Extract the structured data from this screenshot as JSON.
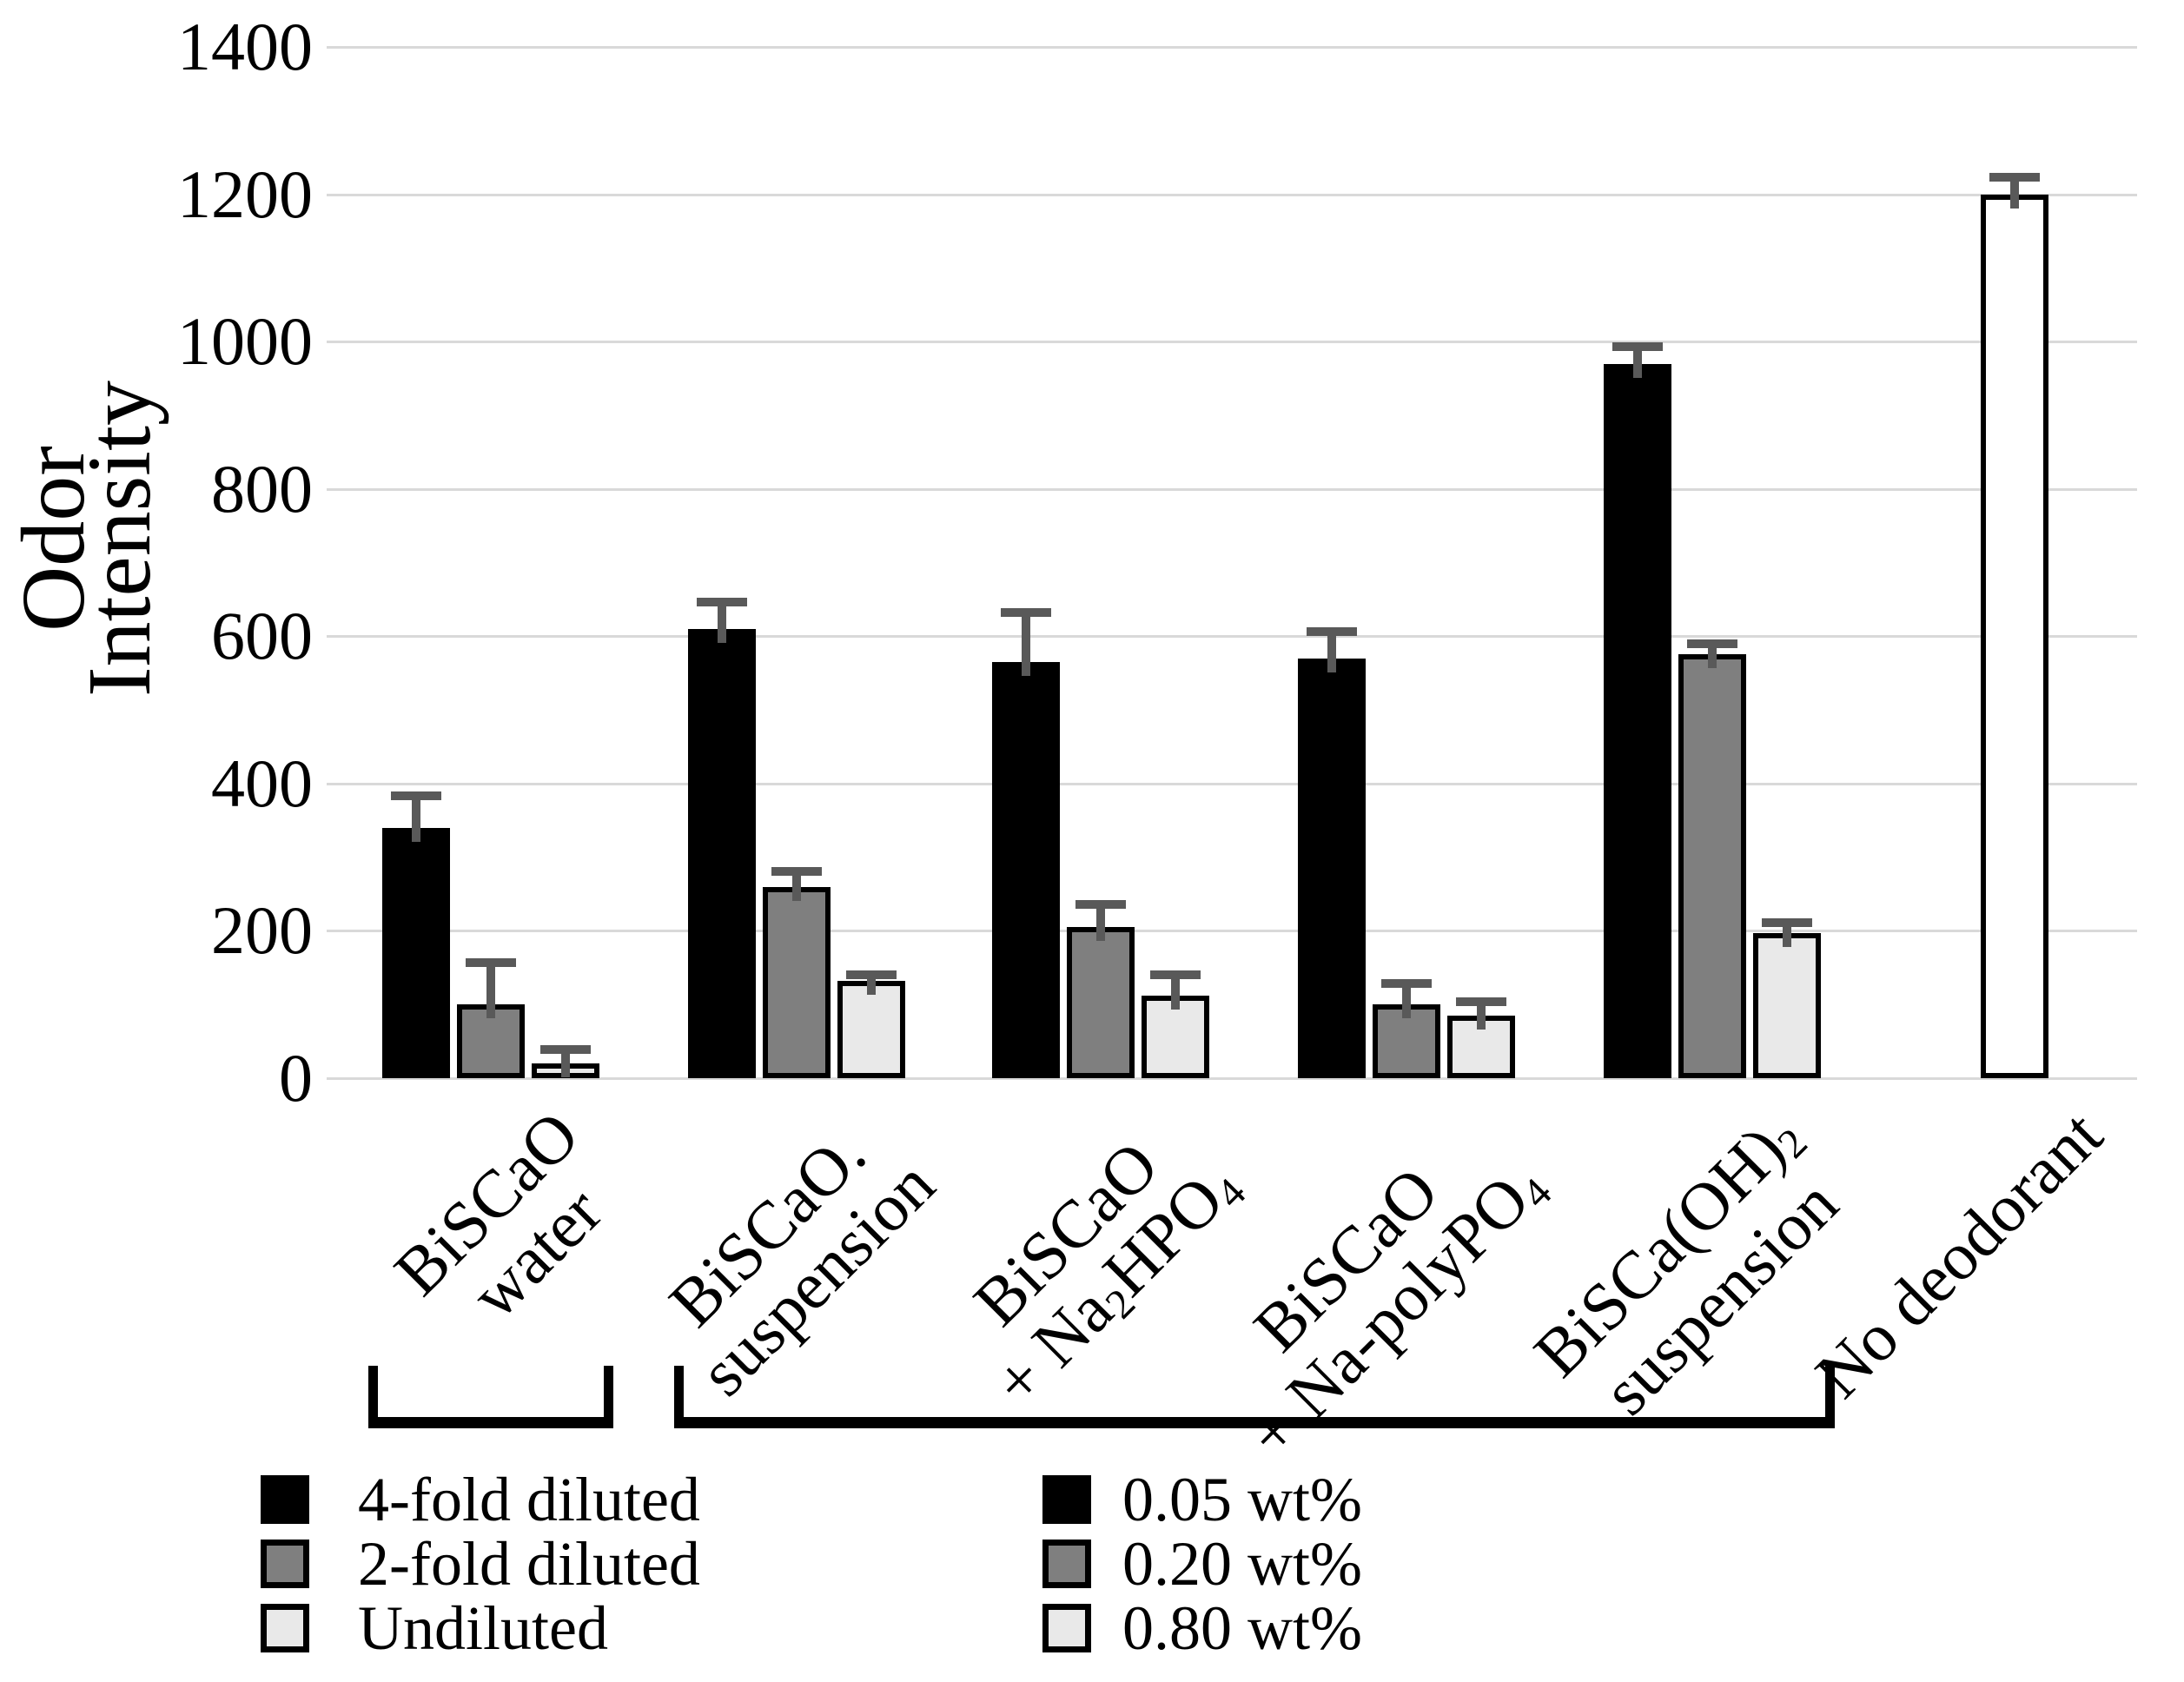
{
  "chart_data": {
    "type": "bar",
    "title": "",
    "ylabel": "Odor Intensity",
    "xlabel": "",
    "ylim": [
      0,
      1400
    ],
    "ytick_step": 200,
    "yticks": [
      0,
      200,
      400,
      600,
      800,
      1000,
      1200,
      1400
    ],
    "grid": "horizontal",
    "categories": [
      "BiSCaO water",
      "BiSCaO. suspension",
      "BiSCaO + Na2HPO4",
      "BiSCaO + Na-polyPO4",
      "BiSCa(OH)2 suspension",
      "No deodorant"
    ],
    "groups": [
      {
        "label_lines": [
          "BiSCaO",
          "water"
        ],
        "bars": [
          {
            "series": "4-fold diluted",
            "value": 340,
            "error_top": 385,
            "fill": "black"
          },
          {
            "series": "2-fold diluted",
            "value": 100,
            "error_top": 158,
            "fill": "gray"
          },
          {
            "series": "Undiluted",
            "value": 20,
            "error_top": 40,
            "fill": "light"
          }
        ]
      },
      {
        "label_lines": [
          "BiSCaO.",
          "suspension"
        ],
        "bars": [
          {
            "series": "0.05 wt%",
            "value": 610,
            "error_top": 648,
            "fill": "black"
          },
          {
            "series": "0.20 wt%",
            "value": 260,
            "error_top": 282,
            "fill": "gray"
          },
          {
            "series": "0.80 wt%",
            "value": 132,
            "error_top": 142,
            "fill": "light"
          }
        ]
      },
      {
        "label_lines": [
          "BiSCaO",
          "+ Na_2HPO_4"
        ],
        "bars": [
          {
            "series": "0.05 wt%",
            "value": 565,
            "error_top": 633,
            "fill": "black"
          },
          {
            "series": "0.20 wt%",
            "value": 205,
            "error_top": 237,
            "fill": "gray"
          },
          {
            "series": "0.80 wt%",
            "value": 112,
            "error_top": 142,
            "fill": "light"
          }
        ]
      },
      {
        "label_lines": [
          "BiSCaO",
          "+ Na-polyPO_4"
        ],
        "bars": [
          {
            "series": "0.05 wt%",
            "value": 570,
            "error_top": 608,
            "fill": "black"
          },
          {
            "series": "0.20 wt%",
            "value": 100,
            "error_top": 130,
            "fill": "gray"
          },
          {
            "series": "0.80 wt%",
            "value": 85,
            "error_top": 105,
            "fill": "light"
          }
        ]
      },
      {
        "label_lines": [
          "BiSCa(OH)_2",
          "suspension"
        ],
        "bars": [
          {
            "series": "0.05 wt%",
            "value": 970,
            "error_top": 995,
            "fill": "black"
          },
          {
            "series": "0.20 wt%",
            "value": 575,
            "error_top": 590,
            "fill": "gray"
          },
          {
            "series": "0.80 wt%",
            "value": 197,
            "error_top": 212,
            "fill": "light"
          }
        ]
      },
      {
        "label_lines": [
          "No deodorant"
        ],
        "bars": [
          {
            "series": "No deodorant",
            "value": 1200,
            "error_top": 1225,
            "fill": "white"
          }
        ]
      }
    ],
    "brackets": [
      {
        "from_group": 0,
        "to_group": 0
      },
      {
        "from_group": 1,
        "to_group": 4
      }
    ],
    "legends": [
      {
        "items": [
          {
            "label": "4-fold diluted",
            "fill": "black"
          },
          {
            "label": "2-fold diluted",
            "fill": "gray"
          },
          {
            "label": "Undiluted",
            "fill": "light"
          }
        ]
      },
      {
        "items": [
          {
            "label": "0.05 wt%",
            "fill": "black"
          },
          {
            "label": "0.20 wt%",
            "fill": "gray"
          },
          {
            "label": "0.80 wt%",
            "fill": "light"
          }
        ]
      }
    ],
    "colors": {
      "black": "#000000",
      "gray": "#7f7f7f",
      "light": "#e9e9e9",
      "white": "#ffffff",
      "bar_border": "#000000",
      "error_bar": "#595959",
      "gridline": "#d9d9d9",
      "text": "#000000",
      "background": "#ffffff"
    },
    "legend_position": "bottom"
  }
}
